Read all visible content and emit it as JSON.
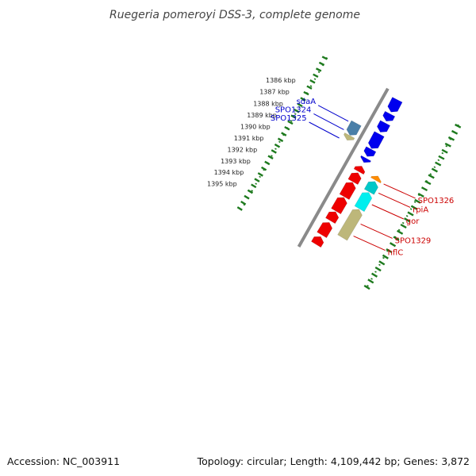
{
  "title": "Ruegeria pomeroyi DSS-3, complete genome",
  "footer": {
    "accession": "Accession: NC_003911",
    "summary": "Topology: circular; Length: 4,109,442 bp; Genes: 3,872"
  },
  "colors": {
    "backbone": "#8a8a8a",
    "ticks": "#1e7a1e",
    "cds_forward": "#0000ee",
    "cds_reverse": "#ee0000",
    "label_forward": "#0000cc",
    "label_reverse": "#cc0000",
    "cog_blue": "#4a7fa8",
    "cog_khaki": "#bdb77a",
    "cog_orange": "#ff8c00",
    "cog_cyan": "#00c8c8",
    "cog_light_cyan": "#00eeee"
  },
  "ticks": [
    {
      "kbp": 1386,
      "label": "1386 kbp"
    },
    {
      "kbp": 1387,
      "label": "1387 kbp"
    },
    {
      "kbp": 1388,
      "label": "1388 kbp"
    },
    {
      "kbp": 1389,
      "label": "1389 kbp"
    },
    {
      "kbp": 1390,
      "label": "1390 kbp"
    },
    {
      "kbp": 1391,
      "label": "1391 kbp"
    },
    {
      "kbp": 1392,
      "label": "1392 kbp"
    },
    {
      "kbp": 1393,
      "label": "1393 kbp"
    },
    {
      "kbp": 1394,
      "label": "1394 kbp"
    },
    {
      "kbp": 1395,
      "label": "1395 kbp"
    }
  ],
  "forward_cds": [
    {
      "start": 1383.8,
      "end": 1384.8
    },
    {
      "start": 1384.95,
      "end": 1385.55
    },
    {
      "start": 1385.7,
      "end": 1386.45
    },
    {
      "start": 1386.6,
      "end": 1387.8
    },
    {
      "start": 1387.85,
      "end": 1388.45
    },
    {
      "start": 1388.6,
      "end": 1388.95
    }
  ],
  "reverse_cds": [
    {
      "start": 1389.25,
      "end": 1389.7
    },
    {
      "start": 1389.8,
      "end": 1390.55
    },
    {
      "start": 1390.6,
      "end": 1391.8
    },
    {
      "start": 1391.85,
      "end": 1393.0
    },
    {
      "start": 1393.05,
      "end": 1393.8
    },
    {
      "start": 1393.95,
      "end": 1395.0
    },
    {
      "start": 1395.15,
      "end": 1395.8
    }
  ],
  "cog_features": [
    {
      "name": "sdaA",
      "start": 1386.7,
      "end": 1387.7,
      "color": "#4a7fa8",
      "strand": "+"
    },
    {
      "name": "SPO1324",
      "start": 1387.72,
      "end": 1388.12,
      "color": "#bdb77a",
      "strand": "+"
    },
    {
      "name": "SPO1326",
      "start": 1389.3,
      "end": 1389.65,
      "color": "#ff8c00",
      "strand": "-"
    },
    {
      "name": "rpiA",
      "start": 1389.75,
      "end": 1390.6,
      "color": "#00c8c8",
      "strand": "-"
    },
    {
      "name": "gor",
      "start": 1390.65,
      "end": 1392.0,
      "color": "#00eeee",
      "strand": "-"
    },
    {
      "name": "SPO1329",
      "start": 1392.05,
      "end": 1394.4,
      "color": "#bdb77a",
      "strand": "-"
    }
  ],
  "gene_labels": [
    {
      "text": "sdaA",
      "kbp": 1386.85,
      "side": "left"
    },
    {
      "text": "SPO1324",
      "kbp": 1387.55,
      "side": "left"
    },
    {
      "text": "SPO1325",
      "kbp": 1388.25,
      "side": "left"
    },
    {
      "text": "SPO1326",
      "kbp": 1389.6,
      "side": "right"
    },
    {
      "text": "rpiA",
      "kbp": 1390.35,
      "side": "right"
    },
    {
      "text": "gor",
      "kbp": 1391.3,
      "side": "right"
    },
    {
      "text": "SPO1329",
      "kbp": 1392.9,
      "side": "right"
    },
    {
      "text": "hflC",
      "kbp": 1393.9,
      "side": "right"
    }
  ]
}
